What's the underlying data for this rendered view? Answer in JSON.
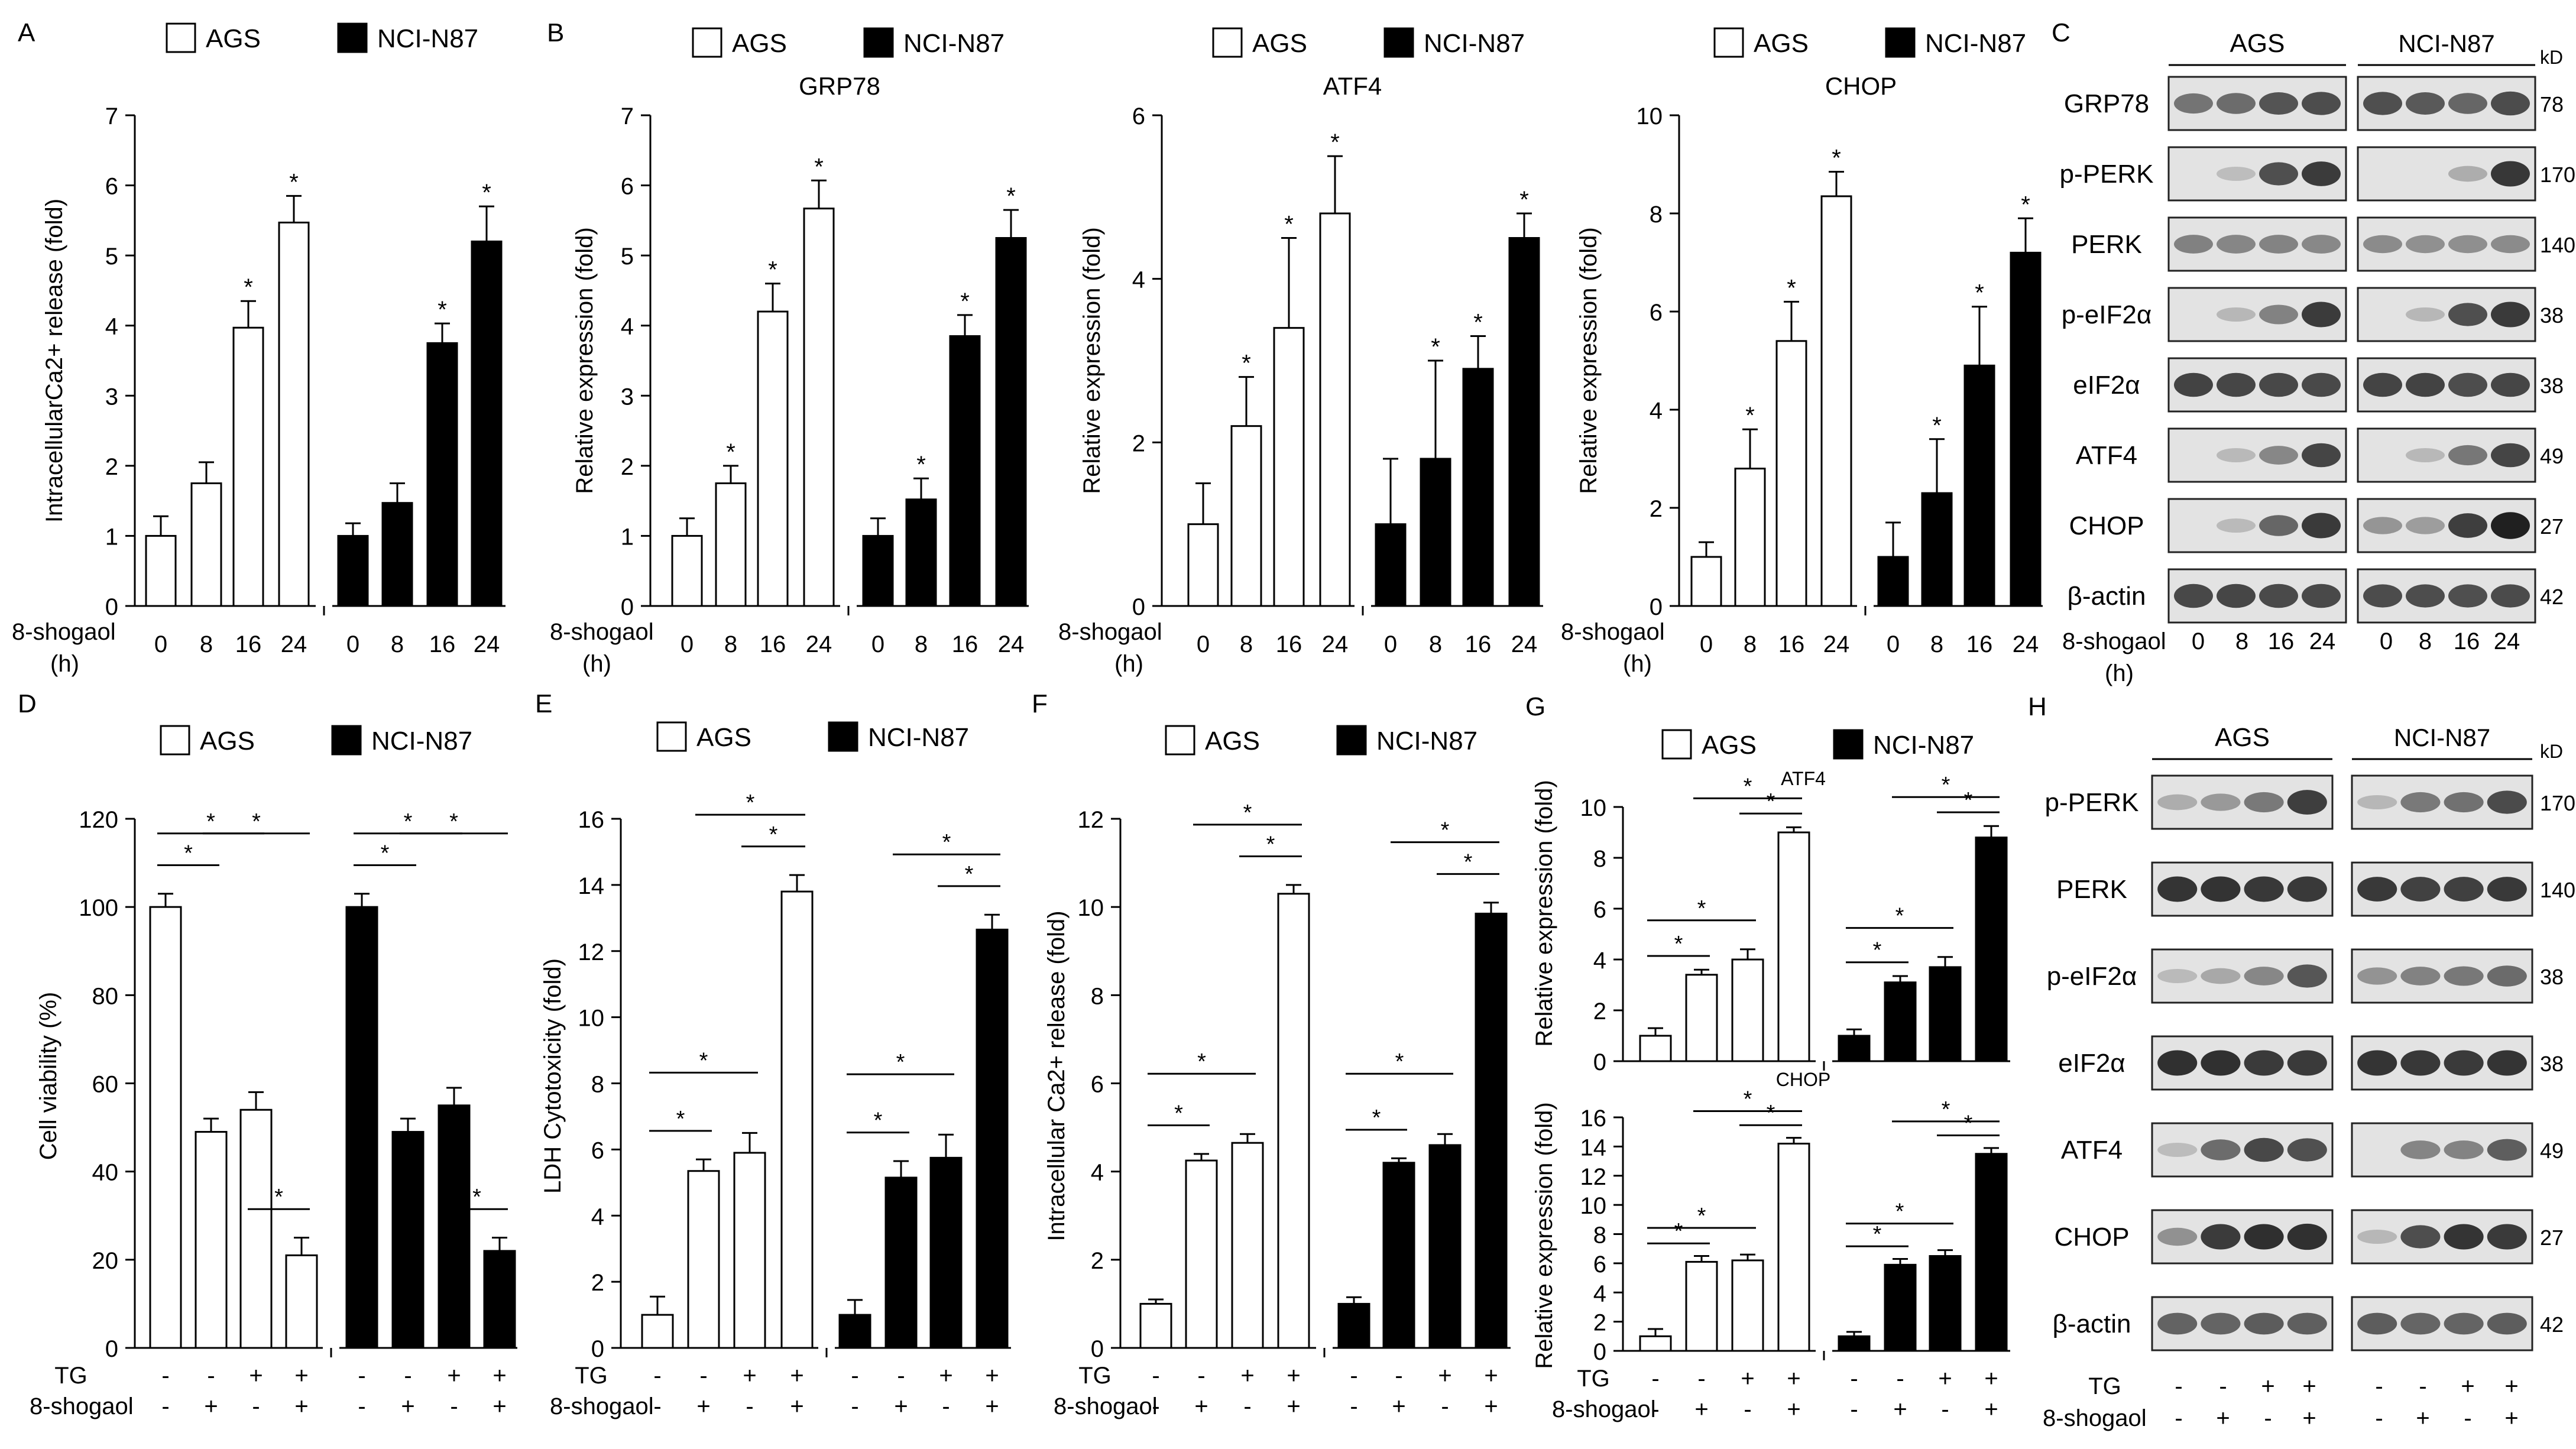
{
  "legend": {
    "a": "AGS",
    "b": "NCI-N87"
  },
  "panel_letters": [
    "A",
    "B",
    "C",
    "D",
    "E",
    "F",
    "G",
    "H"
  ],
  "x_labels": {
    "time_title": "8-shogaol",
    "time_unit": "(h)",
    "times": [
      "0",
      "8",
      "16",
      "24"
    ],
    "tg_title": "TG",
    "sho_title": "8-shogaol",
    "tg_row": [
      "-",
      "-",
      "+",
      "+"
    ],
    "sho_row": [
      "-",
      "+",
      "-",
      "+"
    ],
    "star": "*"
  },
  "blots": {
    "C": {
      "headers": [
        "AGS",
        "NCI-N87"
      ],
      "kd_label": "kD",
      "rows": [
        {
          "label": "GRP78",
          "kd": "78"
        },
        {
          "label": "p-PERK",
          "kd": "170"
        },
        {
          "label": "PERK",
          "kd": "140"
        },
        {
          "label": "p-eIF2α",
          "kd": "38"
        },
        {
          "label": "eIF2α",
          "kd": "38"
        },
        {
          "label": "ATF4",
          "kd": "49"
        },
        {
          "label": "CHOP",
          "kd": "27"
        },
        {
          "label": "β-actin",
          "kd": "42"
        }
      ],
      "x_title": "8-shogaol",
      "x_unit": "(h)",
      "times": [
        "0",
        "8",
        "16",
        "24"
      ]
    },
    "H": {
      "headers": [
        "AGS",
        "NCI-N87"
      ],
      "kd_label": "kD",
      "rows": [
        {
          "label": "p-PERK",
          "kd": "170"
        },
        {
          "label": "PERK",
          "kd": "140"
        },
        {
          "label": "p-eIF2α",
          "kd": "38"
        },
        {
          "label": "eIF2α",
          "kd": "38"
        },
        {
          "label": "ATF4",
          "kd": "49"
        },
        {
          "label": "CHOP",
          "kd": "27"
        },
        {
          "label": "β-actin",
          "kd": "42"
        }
      ],
      "tg_title": "TG",
      "sho_title": "8-shogaol",
      "tg_row": [
        "-",
        "-",
        "+",
        "+"
      ],
      "sho_row": [
        "-",
        "+",
        "-",
        "+"
      ]
    }
  },
  "chart_data": [
    {
      "id": "A",
      "type": "bar",
      "title": "",
      "ylabel": "IntracellularCa2+ release  (fold)",
      "ylim": [
        0,
        7
      ],
      "yticks": [
        0,
        1,
        2,
        3,
        4,
        5,
        6,
        7
      ],
      "series": [
        {
          "name": "AGS",
          "values": [
            1.0,
            1.75,
            3.97,
            5.47
          ],
          "errors": [
            0.28,
            0.3,
            0.38,
            0.38
          ],
          "stars": [
            false,
            false,
            true,
            true
          ]
        },
        {
          "name": "NCI-N87",
          "values": [
            1.0,
            1.47,
            3.75,
            5.2
          ],
          "errors": [
            0.18,
            0.28,
            0.28,
            0.5
          ],
          "stars": [
            false,
            false,
            true,
            true
          ]
        }
      ]
    },
    {
      "id": "B1",
      "type": "bar",
      "title": "GRP78",
      "ylabel": "Relative  expression (fold)",
      "ylim": [
        0,
        7
      ],
      "yticks": [
        0,
        1,
        2,
        3,
        4,
        5,
        6,
        7
      ],
      "series": [
        {
          "name": "AGS",
          "values": [
            1.0,
            1.75,
            4.2,
            5.67
          ],
          "errors": [
            0.25,
            0.25,
            0.4,
            0.4
          ],
          "stars": [
            false,
            true,
            true,
            true
          ]
        },
        {
          "name": "NCI-N87",
          "values": [
            1.0,
            1.52,
            3.85,
            5.25
          ],
          "errors": [
            0.25,
            0.3,
            0.3,
            0.4
          ],
          "stars": [
            false,
            true,
            true,
            true
          ]
        }
      ]
    },
    {
      "id": "B2",
      "type": "bar",
      "title": "ATF4",
      "ylabel": "Relative  expression (fold)",
      "ylim": [
        0,
        6
      ],
      "yticks": [
        0,
        2,
        4,
        6
      ],
      "series": [
        {
          "name": "AGS",
          "values": [
            1.0,
            2.2,
            3.4,
            4.8
          ],
          "errors": [
            0.5,
            0.6,
            1.1,
            0.7
          ],
          "stars": [
            false,
            true,
            true,
            true
          ]
        },
        {
          "name": "NCI-N87",
          "values": [
            1.0,
            1.8,
            2.9,
            4.5
          ],
          "errors": [
            0.8,
            1.2,
            0.4,
            0.3
          ],
          "stars": [
            false,
            true,
            true,
            true
          ]
        }
      ]
    },
    {
      "id": "B3",
      "type": "bar",
      "title": "CHOP",
      "ylabel": "Relative  expression (fold)",
      "ylim": [
        0,
        10
      ],
      "yticks": [
        0,
        2,
        4,
        6,
        8,
        10
      ],
      "series": [
        {
          "name": "AGS",
          "values": [
            1.0,
            2.8,
            5.4,
            8.35
          ],
          "errors": [
            0.3,
            0.8,
            0.8,
            0.5
          ],
          "stars": [
            false,
            true,
            true,
            true
          ]
        },
        {
          "name": "NCI-N87",
          "values": [
            1.0,
            2.3,
            4.9,
            7.2
          ],
          "errors": [
            0.7,
            1.1,
            1.2,
            0.7
          ],
          "stars": [
            false,
            true,
            true,
            true
          ]
        }
      ]
    },
    {
      "id": "D",
      "type": "bar",
      "title": "",
      "ylabel": "Cell viability (%)",
      "ylim": [
        0,
        120
      ],
      "yticks": [
        0,
        20,
        40,
        60,
        80,
        100,
        120
      ],
      "series": [
        {
          "name": "AGS",
          "values": [
            100,
            49,
            54,
            21
          ],
          "errors": [
            3,
            3,
            4,
            4
          ]
        },
        {
          "name": "NCI-N87",
          "values": [
            100,
            49,
            55,
            22
          ],
          "errors": [
            3,
            3,
            4,
            3
          ]
        }
      ]
    },
    {
      "id": "E",
      "type": "bar",
      "title": "",
      "ylabel": "LDH Cytotoxicity (fold)",
      "ylim": [
        0,
        16
      ],
      "yticks": [
        0,
        2,
        4,
        6,
        8,
        10,
        12,
        14,
        16
      ],
      "series": [
        {
          "name": "AGS",
          "values": [
            1.0,
            5.35,
            5.9,
            13.8
          ],
          "errors": [
            0.55,
            0.35,
            0.6,
            0.5
          ]
        },
        {
          "name": "NCI-N87",
          "values": [
            1.0,
            5.15,
            5.75,
            12.65
          ],
          "errors": [
            0.45,
            0.5,
            0.7,
            0.45
          ]
        }
      ]
    },
    {
      "id": "F",
      "type": "bar",
      "title": "",
      "ylabel": "Intracellular Ca2+ release (fold)",
      "ylim": [
        0,
        12
      ],
      "yticks": [
        0,
        2,
        4,
        6,
        8,
        10,
        12
      ],
      "series": [
        {
          "name": "AGS",
          "values": [
            1.0,
            4.25,
            4.65,
            10.3
          ],
          "errors": [
            0.1,
            0.15,
            0.2,
            0.2
          ]
        },
        {
          "name": "NCI-N87",
          "values": [
            1.0,
            4.2,
            4.6,
            9.85
          ],
          "errors": [
            0.15,
            0.1,
            0.25,
            0.25
          ]
        }
      ]
    },
    {
      "id": "G1",
      "type": "bar",
      "title": "ATF4",
      "ylabel": "Relative  expression (fold)",
      "ylim": [
        0,
        10
      ],
      "yticks": [
        0,
        2,
        4,
        6,
        8,
        10
      ],
      "series": [
        {
          "name": "AGS",
          "values": [
            1.0,
            3.4,
            4.0,
            9.0
          ],
          "errors": [
            0.3,
            0.2,
            0.4,
            0.2
          ]
        },
        {
          "name": "NCI-N87",
          "values": [
            1.0,
            3.1,
            3.7,
            8.8
          ],
          "errors": [
            0.25,
            0.25,
            0.4,
            0.45
          ]
        }
      ]
    },
    {
      "id": "G2",
      "type": "bar",
      "title": "CHOP",
      "ylabel": "Relative  expression (fold)",
      "ylim": [
        0,
        16
      ],
      "yticks": [
        0,
        2,
        4,
        6,
        8,
        10,
        12,
        14,
        16
      ],
      "series": [
        {
          "name": "AGS",
          "values": [
            1.0,
            6.1,
            6.2,
            14.2
          ],
          "errors": [
            0.5,
            0.4,
            0.4,
            0.4
          ]
        },
        {
          "name": "NCI-N87",
          "values": [
            1.0,
            5.9,
            6.5,
            13.5
          ],
          "errors": [
            0.3,
            0.4,
            0.4,
            0.4
          ]
        }
      ]
    }
  ]
}
